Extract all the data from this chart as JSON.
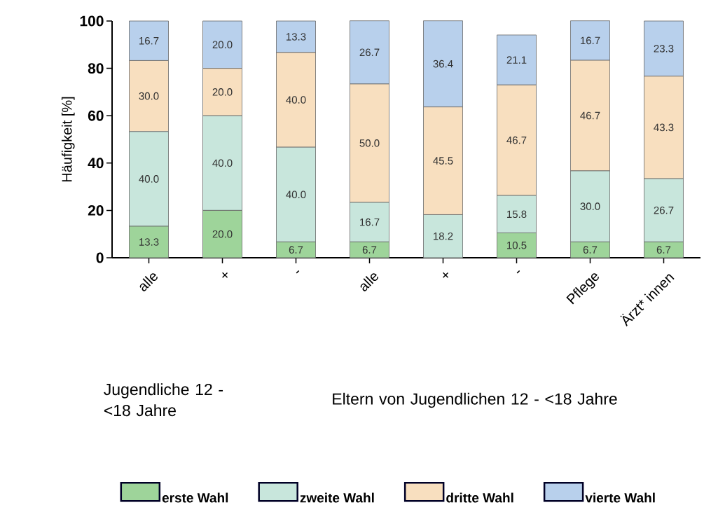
{
  "chart_data": {
    "type": "bar",
    "stacked": true,
    "ylabel": "Häufigkeit [%]",
    "categories": [
      "alle",
      "+",
      "-",
      "alle",
      "+",
      "-",
      "Pflege",
      "Ärzt* innen"
    ],
    "series": [
      {
        "name": "erste Wahl",
        "color": "#9ed49a",
        "values": [
          13.3,
          20.0,
          6.7,
          6.7,
          null,
          10.5,
          6.7,
          6.7
        ],
        "value_labels": [
          "13.3",
          "20.0",
          "6.7",
          "6.7",
          null,
          "10.5",
          "6.7",
          "6.7"
        ]
      },
      {
        "name": "zweite Wahl",
        "color": "#c8e6dc",
        "values": [
          40.0,
          40.0,
          40.0,
          16.7,
          18.2,
          15.8,
          30.0,
          26.7
        ],
        "value_labels": [
          "40.0",
          "40.0",
          "40.0",
          "16.7",
          "18.2",
          "15.8",
          "30.0",
          "26.7"
        ]
      },
      {
        "name": "dritte Wahl",
        "color": "#f8dfbf",
        "values": [
          30.0,
          20.0,
          40.0,
          50.0,
          45.5,
          46.7,
          46.7,
          43.3
        ],
        "value_labels": [
          "30.0",
          "20.0",
          "40.0",
          "50.0",
          "45.5",
          "46.7",
          "46.7",
          "43.3"
        ]
      },
      {
        "name": "vierte Wahl",
        "color": "#b8d0ec",
        "values": [
          16.7,
          20.0,
          13.3,
          26.7,
          36.4,
          21.1,
          16.7,
          23.3
        ],
        "value_labels": [
          "16.7",
          "20.0",
          "13.3",
          "26.7",
          "36.4",
          "21.1",
          "16.7",
          "23.3"
        ]
      }
    ],
    "ylim": [
      0,
      100
    ],
    "yticks": [
      0,
      20,
      40,
      60,
      80,
      100
    ],
    "legend": "bottom",
    "annotations": [
      "Jugendliche 12 - <18 Jahre",
      "Eltern von Jugendlichen 12 - <18 Jahre"
    ]
  }
}
